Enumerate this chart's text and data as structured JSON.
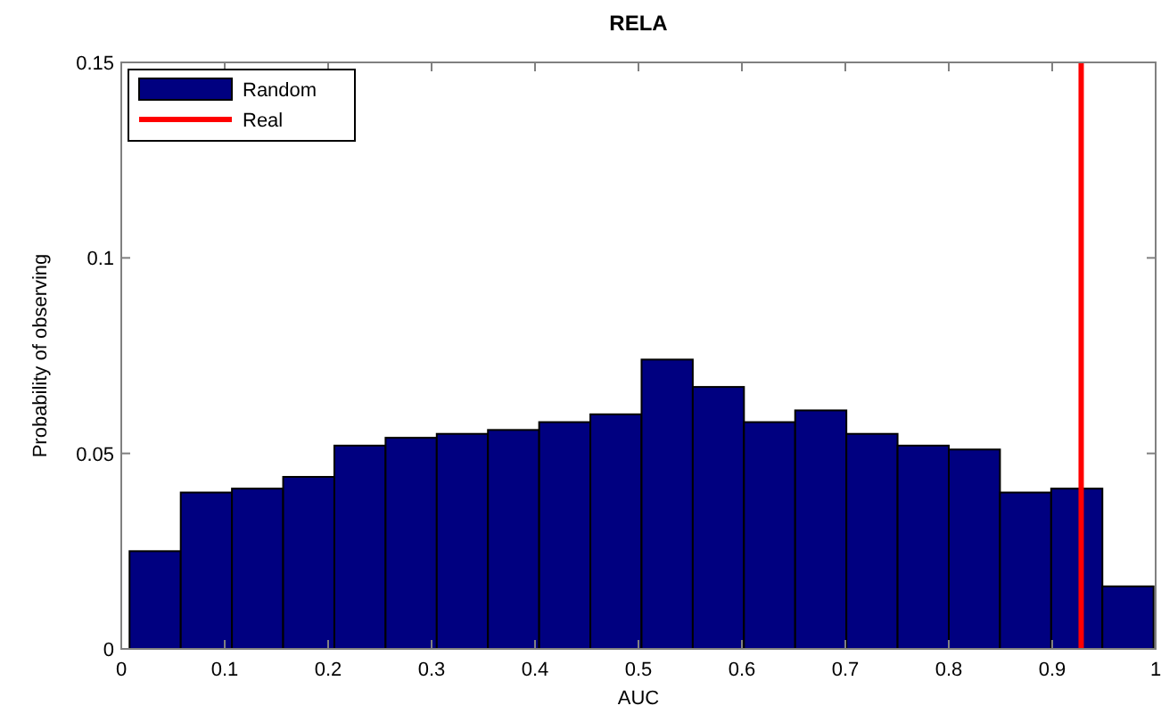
{
  "chart_data": {
    "type": "histogram",
    "title": "RELA",
    "xlabel": "AUC",
    "ylabel": "Probability of observing",
    "bins": [
      0.008,
      0.0575,
      0.107,
      0.1565,
      0.206,
      0.2555,
      0.305,
      0.3545,
      0.404,
      0.4535,
      0.503,
      0.5525,
      0.602,
      0.6515,
      0.701,
      0.7505,
      0.8,
      0.8495,
      0.899,
      0.9485,
      0.998
    ],
    "series": [
      {
        "name": "Random",
        "color": "#000080",
        "values": [
          0.025,
          0.04,
          0.041,
          0.044,
          0.052,
          0.054,
          0.055,
          0.056,
          0.058,
          0.06,
          0.074,
          0.067,
          0.058,
          0.061,
          0.055,
          0.052,
          0.051,
          0.04,
          0.041,
          0.016
        ]
      },
      {
        "type": "line",
        "name": "Real",
        "color": "#ff0000",
        "x": [
          0.928,
          0.928
        ],
        "values": [
          0,
          0.15
        ]
      }
    ],
    "xlim": [
      0,
      1
    ],
    "xticks": [
      0,
      0.1,
      0.2,
      0.3,
      0.4,
      0.5,
      0.6,
      0.7,
      0.8,
      0.9,
      1
    ],
    "ylim": [
      0,
      0.15
    ],
    "yticks": [
      0,
      0.05,
      0.1,
      0.15
    ],
    "legend": "top left",
    "grid": false
  }
}
